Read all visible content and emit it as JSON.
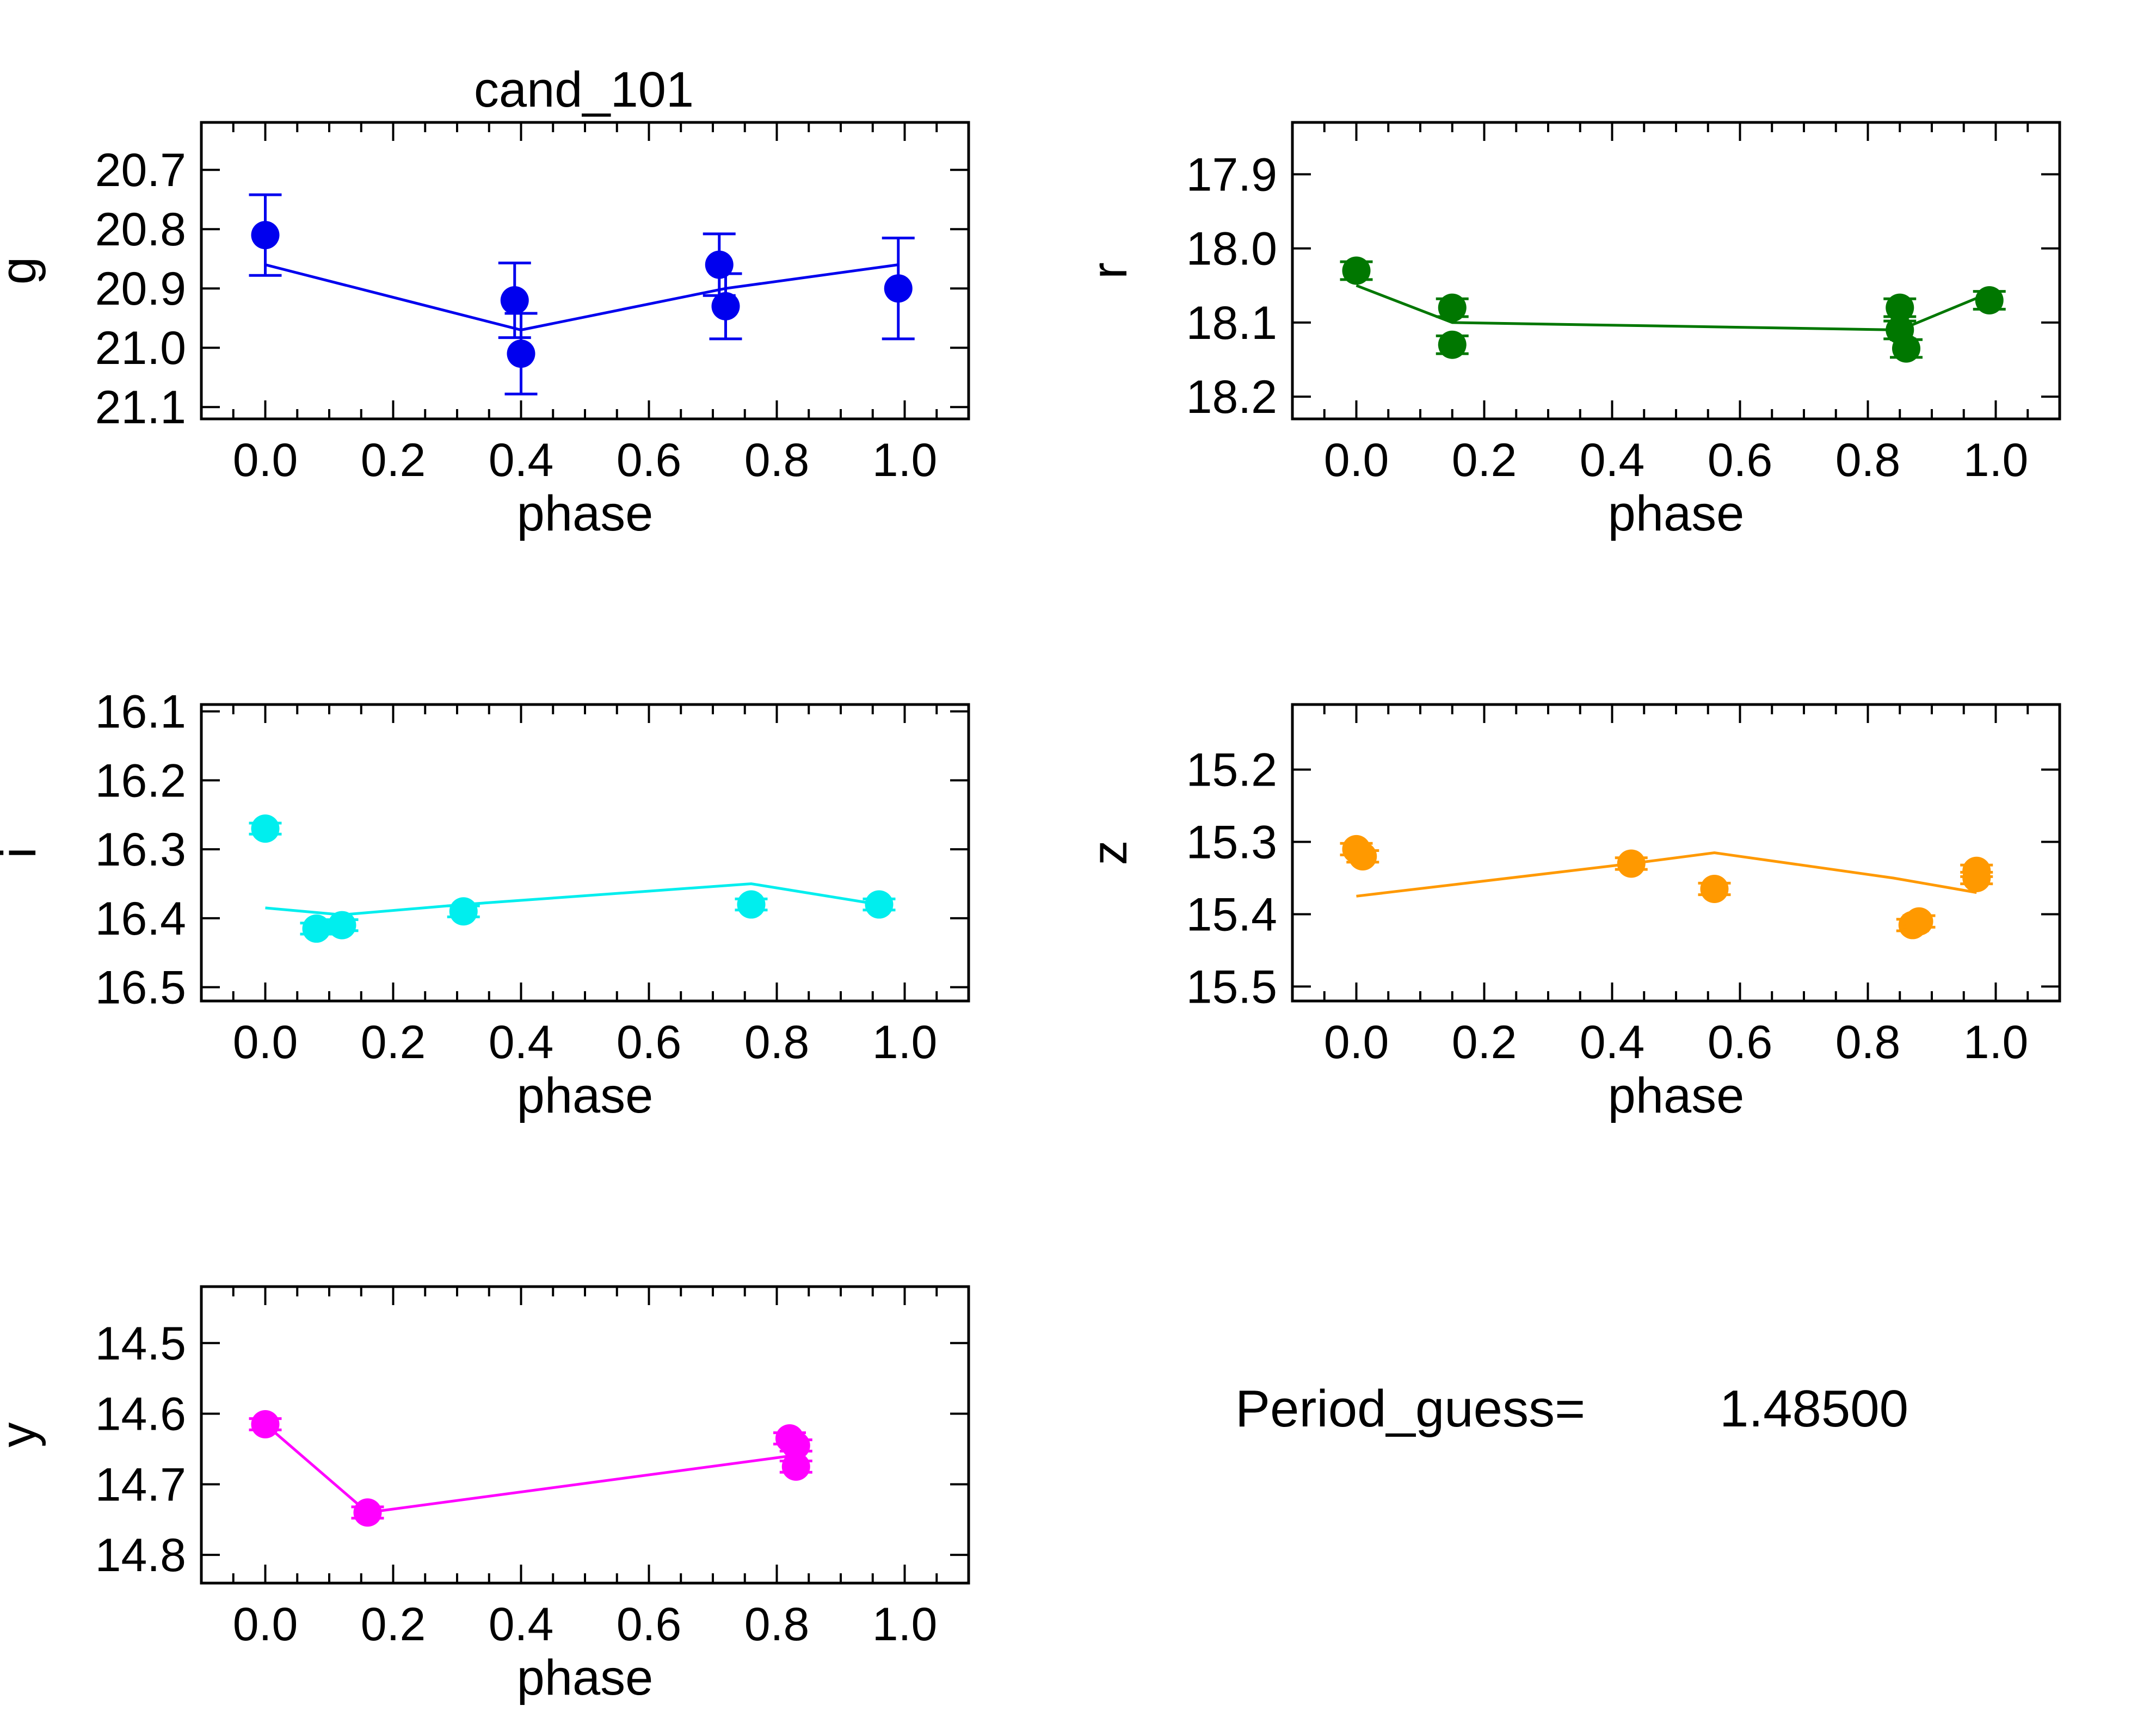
{
  "figure": {
    "title": "cand_101",
    "period_label": "Period_guess=",
    "period_value": "1.48500"
  },
  "chart_data": [
    {
      "type": "scatter",
      "ylabel": "g",
      "xlabel": "phase",
      "color": "#0000ee",
      "xlim": [
        -0.1,
        1.1
      ],
      "ylim": [
        20.62,
        21.12
      ],
      "y_inverted": true,
      "xticks": [
        "0.0",
        "0.2",
        "0.4",
        "0.6",
        "0.8",
        "1.0"
      ],
      "yticks": [
        "20.7",
        "20.8",
        "20.9",
        "21.0",
        "21.1"
      ],
      "points": [
        {
          "x": 0.0,
          "y": 20.81,
          "err": 0.068
        },
        {
          "x": 0.39,
          "y": 20.92,
          "err": 0.063
        },
        {
          "x": 0.4,
          "y": 21.01,
          "err": 0.068
        },
        {
          "x": 0.71,
          "y": 20.86,
          "err": 0.052
        },
        {
          "x": 0.72,
          "y": 20.93,
          "err": 0.055
        },
        {
          "x": 0.99,
          "y": 20.9,
          "err": 0.085
        }
      ],
      "model": {
        "x": [
          0.0,
          0.4,
          0.72,
          0.99
        ],
        "y": [
          20.86,
          20.97,
          20.9,
          20.86
        ]
      }
    },
    {
      "type": "scatter",
      "ylabel": "r",
      "xlabel": "phase",
      "color": "#007700",
      "xlim": [
        -0.1,
        1.1
      ],
      "ylim": [
        17.83,
        18.23
      ],
      "y_inverted": true,
      "xticks": [
        "0.0",
        "0.2",
        "0.4",
        "0.6",
        "0.8",
        "1.0"
      ],
      "yticks": [
        "17.9",
        "18.0",
        "18.1",
        "18.2"
      ],
      "points": [
        {
          "x": 0.0,
          "y": 18.03,
          "err": 0.012
        },
        {
          "x": 0.15,
          "y": 18.08,
          "err": 0.012
        },
        {
          "x": 0.15,
          "y": 18.13,
          "err": 0.012
        },
        {
          "x": 0.85,
          "y": 18.08,
          "err": 0.012
        },
        {
          "x": 0.85,
          "y": 18.11,
          "err": 0.012
        },
        {
          "x": 0.86,
          "y": 18.135,
          "err": 0.012
        },
        {
          "x": 0.99,
          "y": 18.07,
          "err": 0.012
        }
      ],
      "model": {
        "x": [
          0.0,
          0.15,
          0.85,
          0.99
        ],
        "y": [
          18.05,
          18.1,
          18.11,
          18.06
        ]
      }
    },
    {
      "type": "scatter",
      "ylabel": "i",
      "xlabel": "phase",
      "color": "#00eeee",
      "xlim": [
        -0.1,
        1.1
      ],
      "ylim": [
        16.09,
        16.52
      ],
      "y_inverted": true,
      "xticks": [
        "0.0",
        "0.2",
        "0.4",
        "0.6",
        "0.8",
        "1.0"
      ],
      "yticks": [
        "16.1",
        "16.2",
        "16.3",
        "16.4",
        "16.5"
      ],
      "points": [
        {
          "x": 0.0,
          "y": 16.27,
          "err": 0.008
        },
        {
          "x": 0.08,
          "y": 16.415,
          "err": 0.008
        },
        {
          "x": 0.12,
          "y": 16.41,
          "err": 0.008
        },
        {
          "x": 0.31,
          "y": 16.39,
          "err": 0.008
        },
        {
          "x": 0.76,
          "y": 16.38,
          "err": 0.008
        },
        {
          "x": 0.96,
          "y": 16.38,
          "err": 0.008
        }
      ],
      "model": {
        "x": [
          0.0,
          0.12,
          0.31,
          0.76,
          0.96
        ],
        "y": [
          16.385,
          16.395,
          16.38,
          16.35,
          16.38
        ]
      }
    },
    {
      "type": "scatter",
      "ylabel": "z",
      "xlabel": "phase",
      "color": "#ff9900",
      "xlim": [
        -0.1,
        1.1
      ],
      "ylim": [
        15.11,
        15.52
      ],
      "y_inverted": true,
      "xticks": [
        "0.0",
        "0.2",
        "0.4",
        "0.6",
        "0.8",
        "1.0"
      ],
      "yticks": [
        "15.2",
        "15.3",
        "15.4",
        "15.5"
      ],
      "points": [
        {
          "x": 0.0,
          "y": 15.31,
          "err": 0.008
        },
        {
          "x": 0.01,
          "y": 15.32,
          "err": 0.008
        },
        {
          "x": 0.43,
          "y": 15.33,
          "err": 0.008
        },
        {
          "x": 0.56,
          "y": 15.365,
          "err": 0.008
        },
        {
          "x": 0.87,
          "y": 15.415,
          "err": 0.008
        },
        {
          "x": 0.88,
          "y": 15.41,
          "err": 0.008
        },
        {
          "x": 0.97,
          "y": 15.34,
          "err": 0.008
        },
        {
          "x": 0.97,
          "y": 15.35,
          "err": 0.008
        }
      ],
      "model": {
        "x": [
          0.0,
          0.43,
          0.56,
          0.84,
          0.97
        ],
        "y": [
          15.375,
          15.33,
          15.315,
          15.35,
          15.37
        ]
      }
    },
    {
      "type": "scatter",
      "ylabel": "y",
      "xlabel": "phase",
      "color": "#ff00ff",
      "xlim": [
        -0.1,
        1.1
      ],
      "ylim": [
        14.42,
        14.84
      ],
      "y_inverted": true,
      "xticks": [
        "0.0",
        "0.2",
        "0.4",
        "0.6",
        "0.8",
        "1.0"
      ],
      "yticks": [
        "14.5",
        "14.6",
        "14.7",
        "14.8"
      ],
      "points": [
        {
          "x": 0.0,
          "y": 14.615,
          "err": 0.008
        },
        {
          "x": 0.16,
          "y": 14.74,
          "err": 0.008
        },
        {
          "x": 0.82,
          "y": 14.635,
          "err": 0.008
        },
        {
          "x": 0.83,
          "y": 14.645,
          "err": 0.008
        },
        {
          "x": 0.83,
          "y": 14.675,
          "err": 0.008
        }
      ],
      "model": {
        "x": [
          0.0,
          0.16,
          0.82
        ],
        "y": [
          14.615,
          14.74,
          14.66
        ]
      }
    }
  ]
}
